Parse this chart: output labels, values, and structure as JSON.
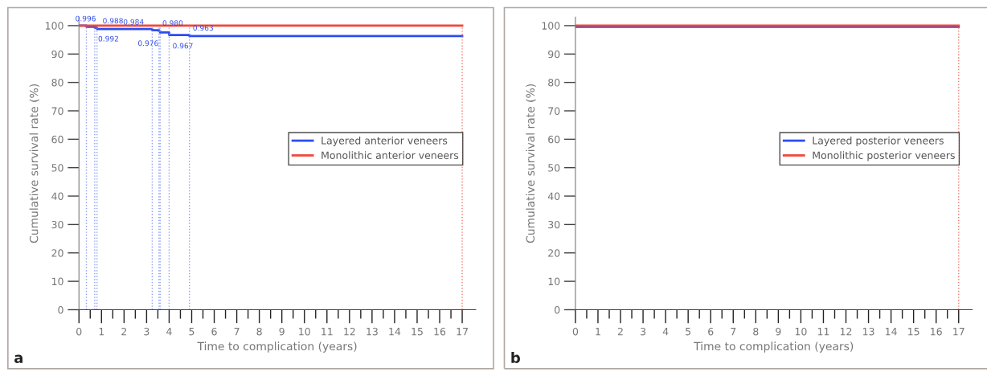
{
  "chart_data": [
    {
      "type": "step",
      "xlabel": "Time to complication (years)",
      "ylabel": "Cumulative survival rate (%)",
      "legend": "right",
      "marker": "none",
      "grid": false,
      "xlim": [
        0,
        17.6
      ],
      "ylim": [
        0,
        103
      ],
      "xticks": [
        0,
        {
          "value": 0.5,
          "label": null
        },
        1,
        {
          "value": 1.5,
          "label": null
        },
        2,
        {
          "value": 2.5,
          "label": null
        },
        3,
        {
          "value": 3.5,
          "label": null
        },
        4,
        {
          "value": 4.5,
          "label": null
        },
        5,
        {
          "value": 5.5,
          "label": null
        },
        6,
        {
          "value": 6.5,
          "label": null
        },
        7,
        {
          "value": 7.5,
          "label": null
        },
        8,
        {
          "value": 8.5,
          "label": null
        },
        9,
        {
          "value": 9.5,
          "label": null
        },
        10,
        {
          "value": 10.5,
          "label": null
        },
        11,
        {
          "value": 11.5,
          "label": null
        },
        12,
        {
          "value": 12.5,
          "label": null
        },
        13,
        {
          "value": 13.5,
          "label": null
        },
        14,
        {
          "value": 14.5,
          "label": null
        },
        15,
        {
          "value": 15.5,
          "label": null
        },
        16,
        {
          "value": 16.5,
          "label": null
        },
        17
      ],
      "yticks": [
        0,
        10,
        20,
        30,
        40,
        50,
        60,
        70,
        80,
        90,
        100
      ],
      "series": [
        {
          "name": "Layered anterior veneers",
          "color": "#2b4cf0",
          "x": [
            0,
            0.33,
            0.7,
            0.8,
            3.25,
            3.55,
            3.6,
            4.0,
            4.9,
            17
          ],
          "values": [
            100,
            99.6,
            99.2,
            98.8,
            98.4,
            98.0,
            97.6,
            96.7,
            96.3,
            96.3
          ]
        },
        {
          "name": "Monolithic anterior veneers",
          "color": "#f0483a",
          "x": [
            0,
            17
          ],
          "values": [
            100,
            100
          ]
        }
      ],
      "ref_lines": [
        {
          "axis": "x",
          "value": 0.33,
          "color": "#8a9cf5",
          "line_style": "dotted"
        },
        {
          "axis": "x",
          "value": 0.7,
          "color": "#8a9cf5",
          "line_style": "dotted"
        },
        {
          "axis": "x",
          "value": 0.8,
          "color": "#8a9cf5",
          "line_style": "dotted"
        },
        {
          "axis": "x",
          "value": 3.25,
          "color": "#8a9cf5",
          "line_style": "dotted"
        },
        {
          "axis": "x",
          "value": 3.55,
          "color": "#8a9cf5",
          "line_style": "dotted"
        },
        {
          "axis": "x",
          "value": 3.6,
          "color": "#8a9cf5",
          "line_style": "dotted"
        },
        {
          "axis": "x",
          "value": 4.0,
          "color": "#8a9cf5",
          "line_style": "dotted"
        },
        {
          "axis": "x",
          "value": 4.9,
          "color": "#8a9cf5",
          "line_style": "dotted"
        },
        {
          "axis": "x",
          "value": 17,
          "color": "#f07a70",
          "line_style": "dotted"
        }
      ],
      "annotations": [
        {
          "text": "0.996",
          "x": 0.33,
          "y": 99.6
        },
        {
          "text": "0.992",
          "x": 0.7,
          "y": 99.2
        },
        {
          "text": "0.988",
          "x": 0.8,
          "y": 98.8
        },
        {
          "text": "0.984",
          "x": 3.25,
          "y": 98.4
        },
        {
          "text": "0.980",
          "x": 3.55,
          "y": 98.0
        },
        {
          "text": "0.976",
          "x": 3.6,
          "y": 97.6
        },
        {
          "text": "0.967",
          "x": 4.0,
          "y": 96.7
        },
        {
          "text": "0.963",
          "x": 4.9,
          "y": 96.3
        },
        "a"
      ]
    },
    {
      "type": "step",
      "xlabel": "Time to complication (years)",
      "ylabel": "Cumulative survival rate (%)",
      "legend": "right",
      "marker": "none",
      "grid": false,
      "xlim": [
        0,
        17.6
      ],
      "ylim": [
        0,
        103
      ],
      "xticks": [
        0,
        {
          "value": 0.5,
          "label": null
        },
        1,
        {
          "value": 1.5,
          "label": null
        },
        2,
        {
          "value": 2.5,
          "label": null
        },
        3,
        {
          "value": 3.5,
          "label": null
        },
        4,
        {
          "value": 4.5,
          "label": null
        },
        5,
        {
          "value": 5.5,
          "label": null
        },
        6,
        {
          "value": 6.5,
          "label": null
        },
        7,
        {
          "value": 7.5,
          "label": null
        },
        8,
        {
          "value": 8.5,
          "label": null
        },
        9,
        {
          "value": 9.5,
          "label": null
        },
        10,
        {
          "value": 10.5,
          "label": null
        },
        11,
        {
          "value": 11.5,
          "label": null
        },
        12,
        {
          "value": 12.5,
          "label": null
        },
        13,
        {
          "value": 13.5,
          "label": null
        },
        14,
        {
          "value": 14.5,
          "label": null
        },
        15,
        {
          "value": 15.5,
          "label": null
        },
        16,
        {
          "value": 16.5,
          "label": null
        },
        17
      ],
      "yticks": [
        0,
        10,
        20,
        30,
        40,
        50,
        60,
        70,
        80,
        90,
        100
      ],
      "series": [
        {
          "name": "Layered posterior veneers",
          "color": "#2b4cf0",
          "x": [
            0,
            17
          ],
          "values": [
            99.6,
            99.6
          ]
        },
        {
          "name": "Monolithic posterior veneers",
          "color": "#f0483a",
          "x": [
            0,
            17
          ],
          "values": [
            100,
            100
          ]
        }
      ],
      "ref_lines": [
        {
          "axis": "x",
          "value": 17,
          "color": "#f07a70",
          "line_style": "dotted"
        }
      ],
      "annotations": [
        "b"
      ]
    }
  ]
}
